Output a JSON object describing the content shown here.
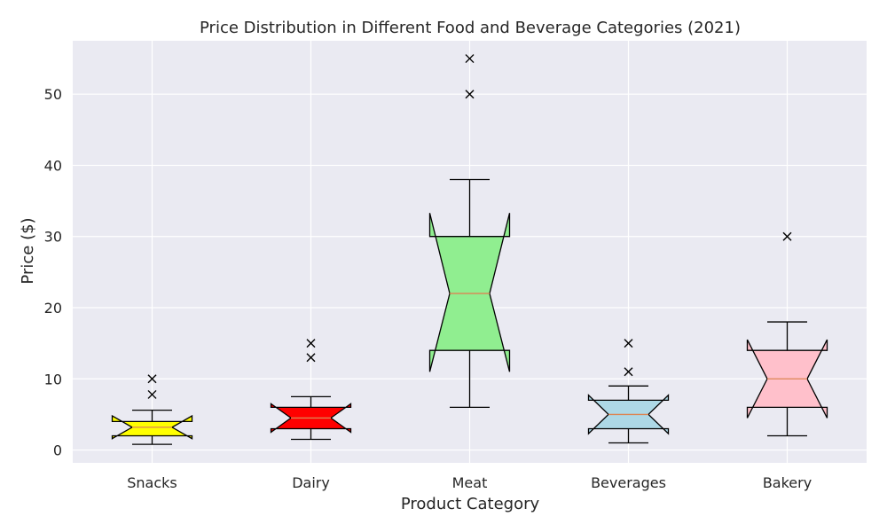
{
  "chart_data": {
    "type": "box",
    "title": "Price Distribution in Different Food and Beverage Categories (2021)",
    "xlabel": "Product Category",
    "ylabel": "Price ($)",
    "ylim": [
      -1.8,
      57.5
    ],
    "yticks": [
      0,
      10,
      20,
      30,
      40,
      50
    ],
    "notched": true,
    "grid": true,
    "colors": {
      "background": "#eaeaf2",
      "grid": "#ffffff",
      "median": "#dd8452",
      "outline": "#000000"
    },
    "categories": [
      "Snacks",
      "Dairy",
      "Meat",
      "Beverages",
      "Bakery"
    ],
    "boxes": [
      {
        "name": "Snacks",
        "color": "#ffff00",
        "whisker_low": 0.8,
        "q1": 2.0,
        "median": 3.2,
        "q3": 4.0,
        "whisker_high": 5.6,
        "notch_low": 1.6,
        "notch_high": 4.8,
        "outliers": [
          7.8,
          10
        ]
      },
      {
        "name": "Dairy",
        "color": "#ff0000",
        "whisker_low": 1.5,
        "q1": 3.0,
        "median": 4.5,
        "q3": 6.0,
        "whisker_high": 7.5,
        "notch_low": 2.5,
        "notch_high": 6.5,
        "outliers": [
          13,
          15
        ]
      },
      {
        "name": "Meat",
        "color": "#90ee90",
        "whisker_low": 6,
        "q1": 14,
        "median": 22,
        "q3": 30,
        "whisker_high": 38,
        "notch_low": 11,
        "notch_high": 33.3,
        "outliers": [
          50,
          55
        ]
      },
      {
        "name": "Beverages",
        "color": "#add8e6",
        "whisker_low": 1,
        "q1": 3,
        "median": 5,
        "q3": 7,
        "whisker_high": 9,
        "notch_low": 2.3,
        "notch_high": 7.7,
        "outliers": [
          11,
          15
        ]
      },
      {
        "name": "Bakery",
        "color": "#ffc0cb",
        "whisker_low": 2,
        "q1": 6,
        "median": 10,
        "q3": 14,
        "whisker_high": 18,
        "notch_low": 4.5,
        "notch_high": 15.5,
        "outliers": [
          30
        ]
      }
    ]
  }
}
